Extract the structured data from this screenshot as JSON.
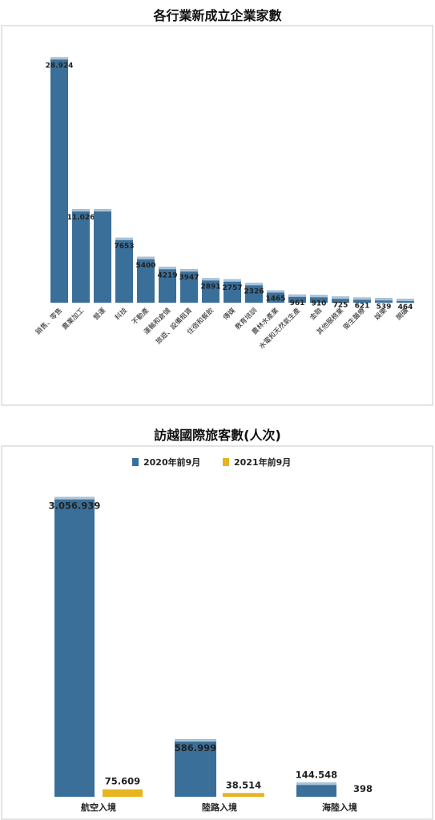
{
  "chart_data": [
    {
      "type": "bar",
      "title": "各行業新成立企業家數",
      "categories": [
        "銷售、零售",
        "農業加工",
        "營運",
        "科技",
        "不動產",
        "運輸和倉儲",
        "旅遊、設備租賃",
        "住宿和餐飲",
        "傳媒",
        "教育培訓",
        "農林水產業",
        "水電和天然氣生產",
        "金融",
        "其他服務業",
        "衛生醫療",
        "娛樂",
        "開礦"
      ],
      "value_labels": [
        "28.924",
        "11.026",
        "",
        "7653",
        "5400",
        "4219",
        "3947",
        "2891",
        "2757",
        "2326",
        "1465",
        "961",
        "910",
        "725",
        "621",
        "539",
        "464"
      ],
      "values": [
        28924,
        11026,
        11026,
        7653,
        5400,
        4219,
        3947,
        2891,
        2757,
        2326,
        1465,
        961,
        910,
        725,
        621,
        539,
        464
      ],
      "ylim": [
        0,
        30000
      ],
      "colors": {
        "bar": "#3a6f9a",
        "cap": "#a9c3d8"
      }
    },
    {
      "type": "bar",
      "title": "訪越國際旅客數(人次)",
      "categories": [
        "航空入境",
        "陸路入境",
        "海陸入境"
      ],
      "series": [
        {
          "name": "2020年前9月",
          "values": [
            3056939,
            586999,
            144548
          ],
          "labels": [
            "3.056.939",
            "586.999",
            "144.548"
          ],
          "color": "#3a6f9a"
        },
        {
          "name": "2021年前9月",
          "values": [
            75609,
            38514,
            398
          ],
          "labels": [
            "75.609",
            "38.514",
            "398"
          ],
          "color": "#e6b520"
        }
      ],
      "ylim": [
        0,
        3200000
      ],
      "legend": "top"
    }
  ]
}
